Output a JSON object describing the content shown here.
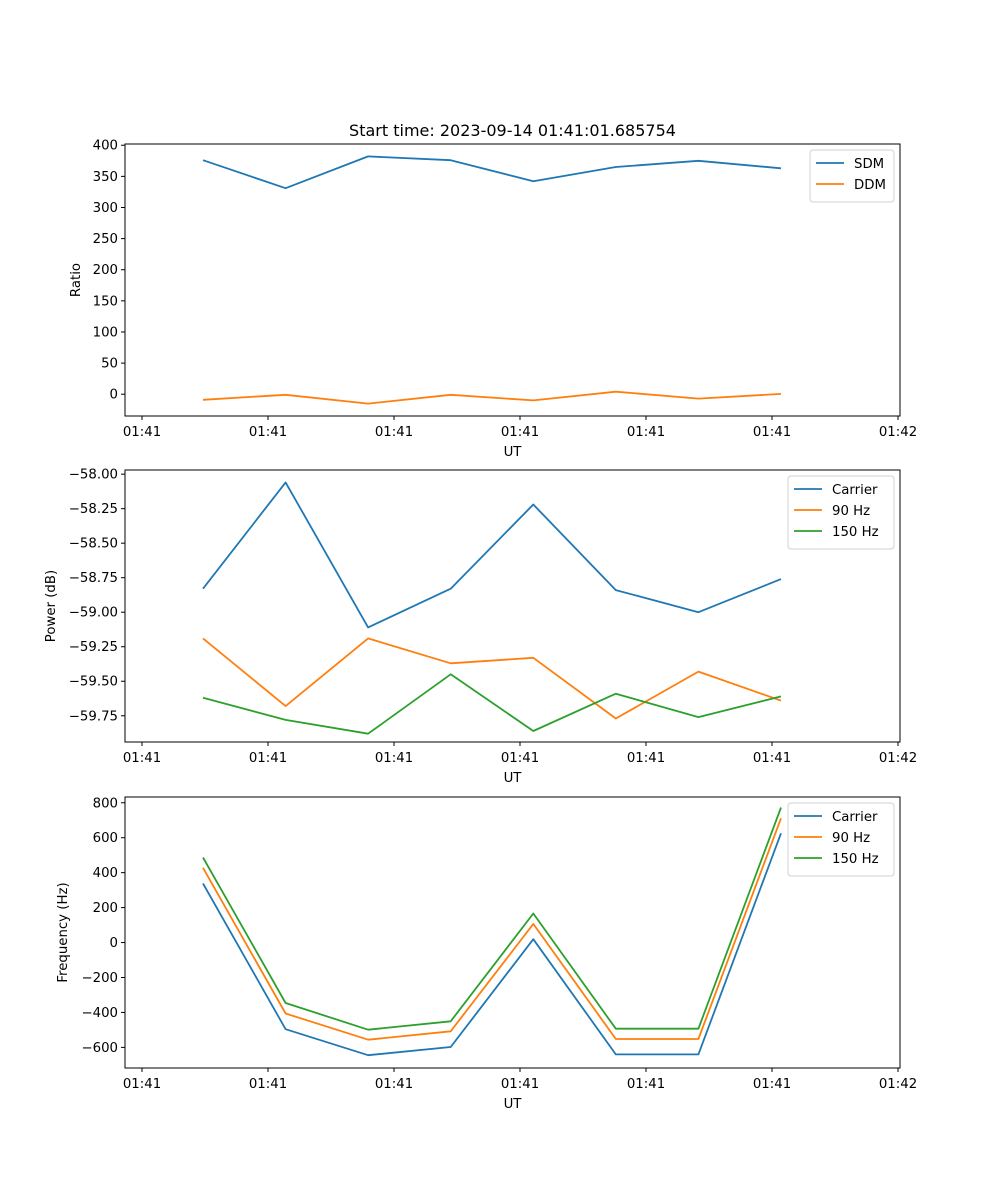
{
  "chart_data": [
    {
      "type": "line",
      "title": "Start time: 2023-09-14 01:41:01.685754",
      "xlabel": "UT",
      "ylabel": "Ratio",
      "xticks": [
        "01:41",
        "01:41",
        "01:41",
        "01:41",
        "01:41",
        "01:41",
        "01:42"
      ],
      "yticks": [
        "0",
        "50",
        "100",
        "150",
        "200",
        "250",
        "300",
        "350",
        "400"
      ],
      "ytick_values": [
        0,
        50,
        100,
        150,
        200,
        250,
        300,
        350,
        400
      ],
      "ylim": [
        -35,
        402
      ],
      "x": [
        0,
        1,
        2,
        3,
        4,
        5,
        6,
        7
      ],
      "legend_position": "upper-right",
      "series": [
        {
          "name": "SDM",
          "color": "#1f77b4",
          "values": [
            376,
            331,
            382,
            376,
            342,
            365,
            375,
            363
          ]
        },
        {
          "name": "DDM",
          "color": "#ff7f0e",
          "values": [
            -9,
            -1,
            -15,
            -1,
            -10,
            4,
            -7,
            0.5
          ]
        }
      ]
    },
    {
      "type": "line",
      "title": "",
      "xlabel": "UT",
      "ylabel": "Power (dB)",
      "xticks": [
        "01:41",
        "01:41",
        "01:41",
        "01:41",
        "01:41",
        "01:41",
        "01:42"
      ],
      "yticks": [
        "−58.00",
        "−58.25",
        "−58.50",
        "−58.75",
        "−59.00",
        "−59.25",
        "−59.50",
        "−59.75"
      ],
      "ytick_values": [
        -58.0,
        -58.25,
        -58.5,
        -58.75,
        -59.0,
        -59.25,
        -59.5,
        -59.75
      ],
      "ylim": [
        -59.94,
        -57.97
      ],
      "x": [
        0,
        1,
        2,
        3,
        4,
        5,
        6,
        7
      ],
      "legend_position": "upper-right",
      "series": [
        {
          "name": "Carrier",
          "color": "#1f77b4",
          "values": [
            -58.83,
            -58.06,
            -59.11,
            -58.83,
            -58.22,
            -58.84,
            -59.0,
            -58.76
          ]
        },
        {
          "name": "90 Hz",
          "color": "#ff7f0e",
          "values": [
            -59.19,
            -59.68,
            -59.19,
            -59.37,
            -59.33,
            -59.77,
            -59.43,
            -59.64
          ]
        },
        {
          "name": "150 Hz",
          "color": "#2ca02c",
          "values": [
            -59.62,
            -59.78,
            -59.88,
            -59.45,
            -59.86,
            -59.59,
            -59.76,
            -59.61
          ]
        }
      ]
    },
    {
      "type": "line",
      "title": "",
      "xlabel": "UT",
      "ylabel": "Frequency (Hz)",
      "xticks": [
        "01:41",
        "01:41",
        "01:41",
        "01:41",
        "01:41",
        "01:41",
        "01:42"
      ],
      "yticks": [
        "−600",
        "−400",
        "−200",
        "0",
        "200",
        "400",
        "600",
        "800"
      ],
      "ytick_values": [
        -600,
        -400,
        -200,
        0,
        200,
        400,
        600,
        800
      ],
      "ylim": [
        -718,
        833
      ],
      "x": [
        0,
        1,
        2,
        3,
        4,
        5,
        6,
        7
      ],
      "legend_position": "upper-right",
      "series": [
        {
          "name": "Carrier",
          "color": "#1f77b4",
          "values": [
            338,
            -496,
            -645,
            -598,
            19,
            -640,
            -640,
            625
          ]
        },
        {
          "name": "90 Hz",
          "color": "#ff7f0e",
          "values": [
            428,
            -406,
            -556,
            -508,
            107,
            -552,
            -552,
            711
          ]
        },
        {
          "name": "150 Hz",
          "color": "#2ca02c",
          "values": [
            487,
            -346,
            -499,
            -451,
            166,
            -493,
            -493,
            773
          ]
        }
      ]
    }
  ]
}
